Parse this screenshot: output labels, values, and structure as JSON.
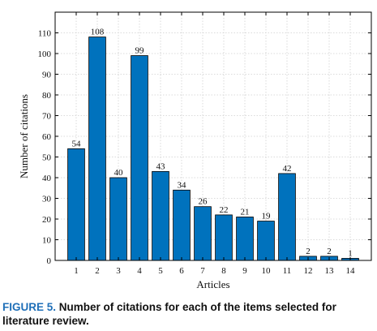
{
  "chart_data": {
    "type": "bar",
    "categories": [
      "1",
      "2",
      "3",
      "4",
      "5",
      "6",
      "7",
      "8",
      "9",
      "10",
      "11",
      "12",
      "13",
      "14"
    ],
    "values": [
      54,
      108,
      40,
      99,
      43,
      34,
      26,
      22,
      21,
      19,
      42,
      2,
      2,
      1
    ],
    "data_labels": [
      "54",
      "108",
      "40",
      "99",
      "43",
      "34",
      "26",
      "22",
      "21",
      "19",
      "42",
      "2",
      "2",
      "1"
    ],
    "title": "",
    "xlabel": "Articles",
    "ylabel": "Number of citations",
    "ylim": [
      0,
      120
    ],
    "yticks": [
      0,
      10,
      20,
      30,
      40,
      50,
      60,
      70,
      80,
      90,
      100,
      110
    ],
    "grid": true,
    "bar_color": "#0072bd",
    "bar_edge_color": "#000000",
    "legend": "none"
  },
  "caption": {
    "figure_number": "FIGURE 5.",
    "text": "Number of citations for each of the items selected for literature review."
  }
}
